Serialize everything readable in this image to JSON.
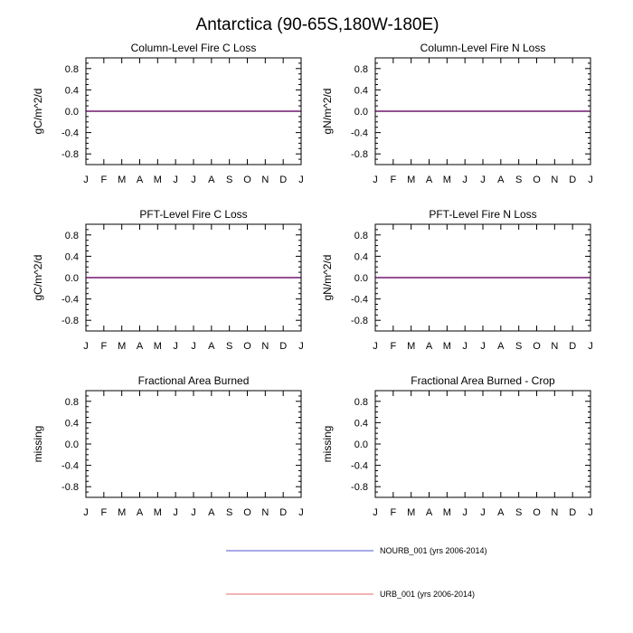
{
  "title": "Antarctica (90-65S,180W-180E)",
  "months": [
    "J",
    "F",
    "M",
    "A",
    "M",
    "J",
    "J",
    "A",
    "S",
    "O",
    "N",
    "D",
    "J"
  ],
  "yticks": [
    0.8,
    0.4,
    0.0,
    -0.4,
    -0.8
  ],
  "ytick_labels": [
    "0.8",
    "0.4",
    "0.0",
    "-0.4",
    "-0.8"
  ],
  "colors": {
    "NOURB_001": "#7777dd",
    "URB_001": "#ee8888",
    "overlap": "#7a2a7a"
  },
  "chart_data": [
    {
      "type": "line",
      "title": "Column-Level Fire C Loss",
      "xlabel": "",
      "ylabel": "gC/m^2/d",
      "ylim": [
        -1,
        1
      ],
      "series": [
        {
          "name": "NOURB_001 (yrs 2006-2014)",
          "values": [
            0,
            0,
            0,
            0,
            0,
            0,
            0,
            0,
            0,
            0,
            0,
            0,
            0
          ]
        },
        {
          "name": "URB_001 (yrs 2006-2014)",
          "values": [
            0,
            0,
            0,
            0,
            0,
            0,
            0,
            0,
            0,
            0,
            0,
            0,
            0
          ]
        }
      ]
    },
    {
      "type": "line",
      "title": "Column-Level Fire N Loss",
      "xlabel": "",
      "ylabel": "gN/m^2/d",
      "ylim": [
        -1,
        1
      ],
      "series": [
        {
          "name": "NOURB_001 (yrs 2006-2014)",
          "values": [
            0,
            0,
            0,
            0,
            0,
            0,
            0,
            0,
            0,
            0,
            0,
            0,
            0
          ]
        },
        {
          "name": "URB_001 (yrs 2006-2014)",
          "values": [
            0,
            0,
            0,
            0,
            0,
            0,
            0,
            0,
            0,
            0,
            0,
            0,
            0
          ]
        }
      ]
    },
    {
      "type": "line",
      "title": "PFT-Level Fire C Loss",
      "xlabel": "",
      "ylabel": "gC/m^2/d",
      "ylim": [
        -1,
        1
      ],
      "series": [
        {
          "name": "NOURB_001 (yrs 2006-2014)",
          "values": [
            0,
            0,
            0,
            0,
            0,
            0,
            0,
            0,
            0,
            0,
            0,
            0,
            0
          ]
        },
        {
          "name": "URB_001 (yrs 2006-2014)",
          "values": [
            0,
            0,
            0,
            0,
            0,
            0,
            0,
            0,
            0,
            0,
            0,
            0,
            0
          ]
        }
      ]
    },
    {
      "type": "line",
      "title": "PFT-Level Fire N Loss",
      "xlabel": "",
      "ylabel": "gN/m^2/d",
      "ylim": [
        -1,
        1
      ],
      "series": [
        {
          "name": "NOURB_001 (yrs 2006-2014)",
          "values": [
            0,
            0,
            0,
            0,
            0,
            0,
            0,
            0,
            0,
            0,
            0,
            0,
            0
          ]
        },
        {
          "name": "URB_001 (yrs 2006-2014)",
          "values": [
            0,
            0,
            0,
            0,
            0,
            0,
            0,
            0,
            0,
            0,
            0,
            0,
            0
          ]
        }
      ]
    },
    {
      "type": "line",
      "title": "Fractional Area Burned",
      "xlabel": "",
      "ylabel": "missing",
      "ylim": [
        -1,
        1
      ],
      "series": []
    },
    {
      "type": "line",
      "title": "Fractional Area Burned - Crop",
      "xlabel": "",
      "ylabel": "missing",
      "ylim": [
        -1,
        1
      ],
      "series": []
    }
  ],
  "legend": [
    {
      "label": "NOURB_001 (yrs 2006-2014)",
      "color": "#7777dd"
    },
    {
      "label": "URB_001 (yrs 2006-2014)",
      "color": "#ee8888"
    }
  ]
}
